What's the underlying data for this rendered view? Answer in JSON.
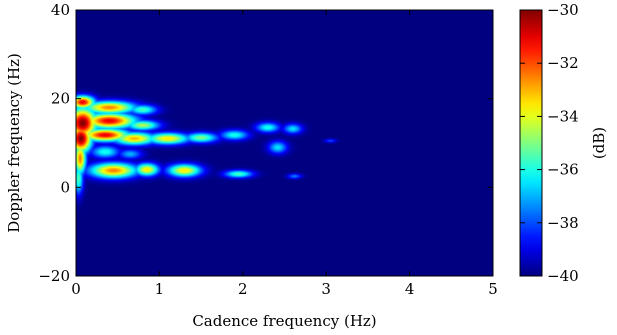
{
  "chart_data": {
    "type": "heatmap",
    "title": "",
    "xlabel": "Cadence frequency (Hz)",
    "ylabel": "Doppler frequency (Hz)",
    "xlim": [
      0,
      5
    ],
    "ylim": [
      -20,
      40
    ],
    "x_ticks": [
      0,
      1,
      2,
      3,
      4,
      5
    ],
    "y_ticks": [
      -20,
      0,
      20,
      40
    ],
    "colorbar": {
      "label": "(dB)",
      "range": [
        -40,
        -30
      ],
      "ticks": [
        -40,
        -38,
        -36,
        -34,
        -32,
        -30
      ],
      "colormap": "jet"
    },
    "background_value": -40,
    "blobs": [
      {
        "x": 0.08,
        "y": 19.2,
        "sx": 0.1,
        "sy": 1.0,
        "peak": -31.0
      },
      {
        "x": 0.08,
        "y": 14.5,
        "sx": 0.12,
        "sy": 2.4,
        "peak": -30.0
      },
      {
        "x": 0.06,
        "y": 11.0,
        "sx": 0.09,
        "sy": 2.2,
        "peak": -30.0
      },
      {
        "x": 0.05,
        "y": 6.5,
        "sx": 0.05,
        "sy": 2.5,
        "peak": -32.5
      },
      {
        "x": 0.03,
        "y": 2.0,
        "sx": 0.04,
        "sy": 2.5,
        "peak": -35.5
      },
      {
        "x": 0.4,
        "y": 18.0,
        "sx": 0.22,
        "sy": 1.0,
        "peak": -32.5
      },
      {
        "x": 0.8,
        "y": 17.5,
        "sx": 0.12,
        "sy": 0.8,
        "peak": -35.5
      },
      {
        "x": 0.4,
        "y": 15.0,
        "sx": 0.22,
        "sy": 1.2,
        "peak": -31.0
      },
      {
        "x": 0.8,
        "y": 14.0,
        "sx": 0.14,
        "sy": 0.8,
        "peak": -34.5
      },
      {
        "x": 0.35,
        "y": 11.8,
        "sx": 0.2,
        "sy": 1.0,
        "peak": -31.0
      },
      {
        "x": 0.7,
        "y": 11.0,
        "sx": 0.18,
        "sy": 1.0,
        "peak": -33.0
      },
      {
        "x": 1.1,
        "y": 11.0,
        "sx": 0.18,
        "sy": 0.9,
        "peak": -33.5
      },
      {
        "x": 1.5,
        "y": 11.2,
        "sx": 0.14,
        "sy": 0.8,
        "peak": -35.0
      },
      {
        "x": 1.9,
        "y": 11.8,
        "sx": 0.12,
        "sy": 0.8,
        "peak": -36.0
      },
      {
        "x": 2.3,
        "y": 13.5,
        "sx": 0.1,
        "sy": 0.8,
        "peak": -36.0
      },
      {
        "x": 2.6,
        "y": 13.2,
        "sx": 0.08,
        "sy": 0.8,
        "peak": -36.5
      },
      {
        "x": 2.42,
        "y": 9.0,
        "sx": 0.08,
        "sy": 1.0,
        "peak": -36.5
      },
      {
        "x": 3.05,
        "y": 10.5,
        "sx": 0.05,
        "sy": 0.3,
        "peak": -38.0
      },
      {
        "x": 0.35,
        "y": 8.0,
        "sx": 0.12,
        "sy": 1.0,
        "peak": -36.0
      },
      {
        "x": 0.65,
        "y": 7.5,
        "sx": 0.1,
        "sy": 0.8,
        "peak": -37.0
      },
      {
        "x": 0.45,
        "y": 3.8,
        "sx": 0.2,
        "sy": 1.2,
        "peak": -32.5
      },
      {
        "x": 0.85,
        "y": 4.0,
        "sx": 0.1,
        "sy": 1.0,
        "peak": -33.5
      },
      {
        "x": 1.3,
        "y": 3.8,
        "sx": 0.14,
        "sy": 1.0,
        "peak": -33.5
      },
      {
        "x": 1.95,
        "y": 3.0,
        "sx": 0.12,
        "sy": 0.6,
        "peak": -35.5
      },
      {
        "x": 2.62,
        "y": 2.5,
        "sx": 0.06,
        "sy": 0.4,
        "peak": -37.5
      }
    ]
  }
}
